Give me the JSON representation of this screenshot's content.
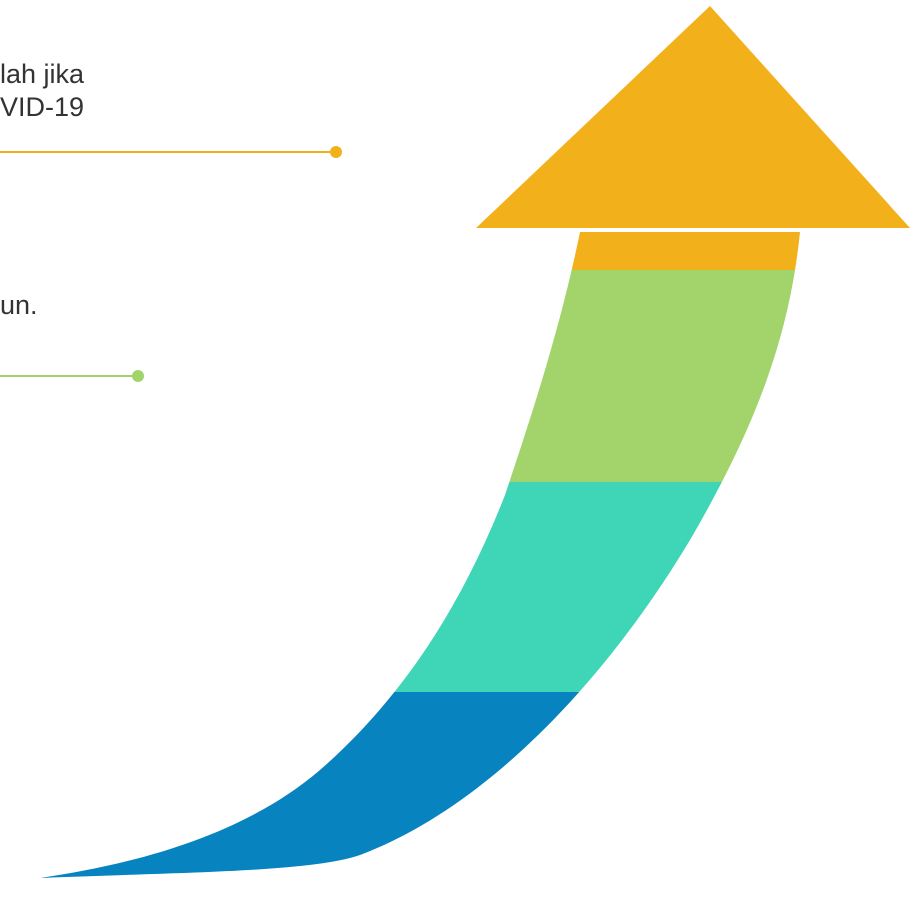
{
  "annotations": [
    {
      "lines": [
        "lah jika",
        "VID-19"
      ],
      "color": "#F2B11A"
    },
    {
      "lines": [
        "un."
      ],
      "color": "#A2D46B"
    }
  ],
  "arrow": {
    "segments_bottom_to_top": [
      {
        "color": "#0783BF"
      },
      {
        "color": "#3FD6B8"
      },
      {
        "color": "#A2D46B"
      },
      {
        "color": "#F2B11A"
      }
    ]
  }
}
